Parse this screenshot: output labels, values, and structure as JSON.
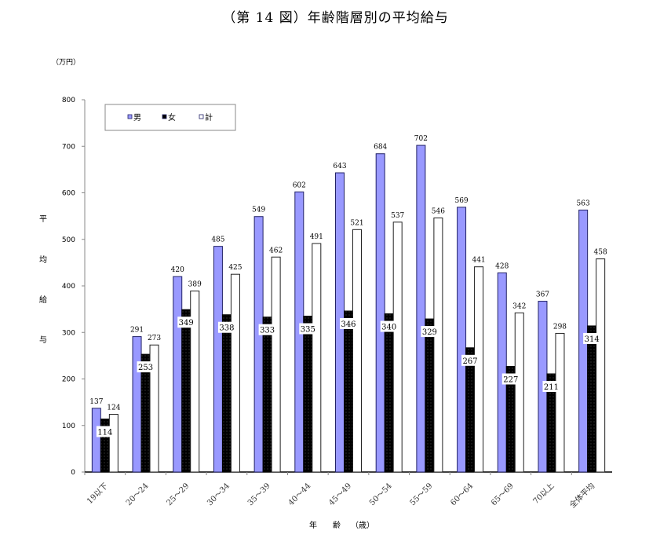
{
  "title": "（第 14 図）年齢階層別の平均給与",
  "unit_label": "（万円）",
  "y_axis_label_chars": [
    "平",
    "均",
    "給",
    "与"
  ],
  "x_axis_label_chars": [
    "年",
    "齢",
    "（歳）"
  ],
  "legend": [
    {
      "label": "男",
      "color": "#9999ff"
    },
    {
      "label": "女",
      "color": "#000000"
    },
    {
      "label": "計",
      "color": "#ffffff"
    }
  ],
  "chart_data": {
    "type": "bar",
    "title": "（第 14 図）年齢階層別の平均給与",
    "xlabel": "年齢（歳）",
    "ylabel": "平均給与",
    "unit": "万円",
    "ylim": [
      0,
      800
    ],
    "yticks": [
      0,
      100,
      200,
      300,
      400,
      500,
      600,
      700,
      800
    ],
    "grid": false,
    "legend_position": "top-left inside",
    "categories": [
      "19以下",
      "20～24",
      "25～29",
      "30～34",
      "35～39",
      "40～44",
      "45～49",
      "50～54",
      "55～59",
      "60～64",
      "65～69",
      "70以上",
      "全体平均"
    ],
    "series": [
      {
        "name": "男",
        "color": "#9999ff",
        "values": [
          137,
          291,
          420,
          485,
          549,
          602,
          643,
          684,
          702,
          569,
          428,
          367,
          563
        ]
      },
      {
        "name": "女",
        "color": "#000000",
        "values": [
          114,
          253,
          349,
          338,
          333,
          335,
          346,
          340,
          329,
          267,
          227,
          211,
          314
        ]
      },
      {
        "name": "計",
        "color": "#ffffff",
        "values": [
          124,
          273,
          389,
          425,
          462,
          491,
          521,
          537,
          546,
          441,
          342,
          298,
          458
        ]
      }
    ]
  }
}
